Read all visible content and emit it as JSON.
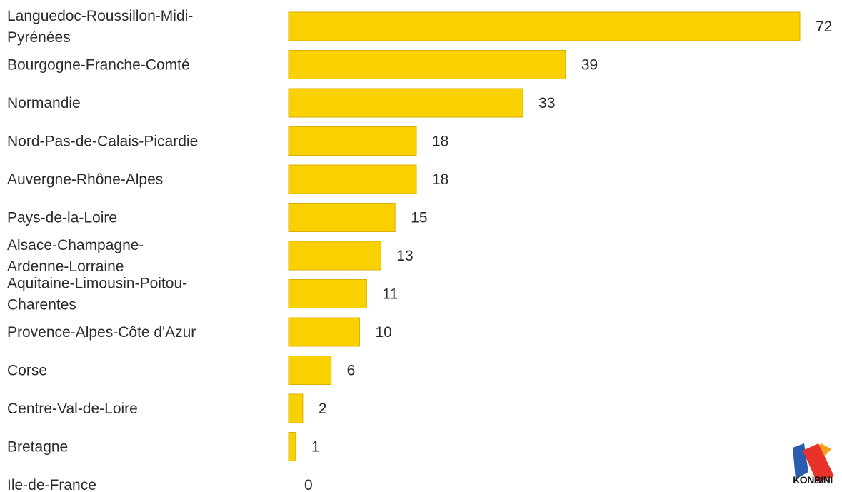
{
  "chart_data": {
    "type": "bar",
    "orientation": "horizontal",
    "categories": [
      "Languedoc-Roussillon-Midi-Pyrénées",
      "Bourgogne-Franche-Comté",
      "Normandie",
      "Nord-Pas-de-Calais-Picardie",
      "Auvergne-Rhône-Alpes",
      "Pays-de-la-Loire",
      "Alsace-Champagne-Ardenne-Lorraine",
      "Aquitaine-Limousin-Poitou-Charentes",
      "Provence-Alpes-Côte d'Azur",
      "Corse",
      "Centre-Val-de-Loire",
      "Bretagne",
      "Ile-de-France"
    ],
    "category_lines": [
      [
        "Languedoc-Roussillon-Midi-",
        "Pyrénées"
      ],
      [
        "Bourgogne-Franche-Comté"
      ],
      [
        "Normandie"
      ],
      [
        "Nord-Pas-de-Calais-Picardie"
      ],
      [
        "Auvergne-Rhône-Alpes"
      ],
      [
        "Pays-de-la-Loire"
      ],
      [
        "Alsace-Champagne-",
        "Ardenne-Lorraine"
      ],
      [
        "Aquitaine-Limousin-Poitou-",
        "Charentes"
      ],
      [
        "Provence-Alpes-Côte d'Azur"
      ],
      [
        "Corse"
      ],
      [
        "Centre-Val-de-Loire"
      ],
      [
        "Bretagne"
      ],
      [
        "Ile-de-France"
      ]
    ],
    "values": [
      72,
      39,
      33,
      18,
      18,
      15,
      13,
      11,
      10,
      6,
      2,
      1,
      0
    ],
    "xlim": [
      0,
      72
    ],
    "grid": false,
    "legend": "none",
    "bar_color": "#f9d100",
    "bar_edge_color": "#d8b000"
  },
  "logo": {
    "text": "KONBINI",
    "colors": {
      "red": "#e8332b",
      "orange": "#f7a21b",
      "blue": "#2a5db0"
    }
  }
}
